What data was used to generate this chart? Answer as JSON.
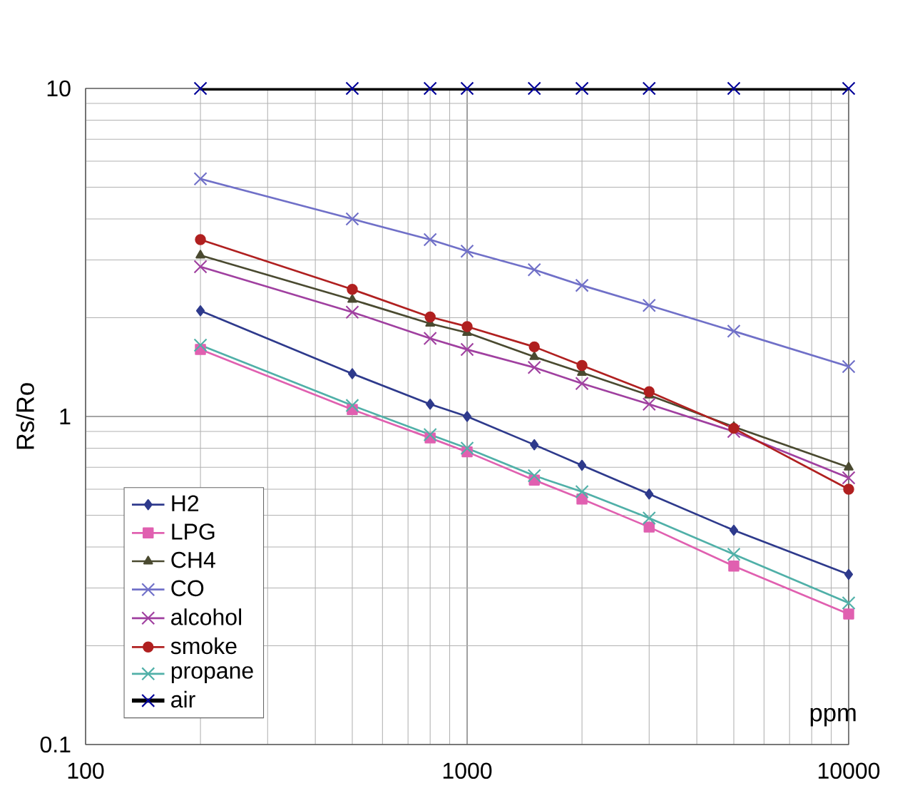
{
  "chart_data": {
    "type": "line",
    "xlabel": "ppm",
    "ylabel": "Rs/Ro",
    "log": "xy",
    "grid": true,
    "legend": "bottom left",
    "x": [
      200,
      500,
      800,
      1000,
      1500,
      2000,
      3000,
      5000,
      10000
    ],
    "xlim": [
      100,
      10000
    ],
    "xticks": [
      100,
      1000,
      10000
    ],
    "ylim": [
      0.1,
      10
    ],
    "yticks": [
      0.1,
      1,
      10
    ],
    "series": [
      {
        "name": "H2",
        "color": "#2e3a8c",
        "marker": "diamond",
        "values": [
          2.1,
          1.35,
          1.09,
          1.0,
          0.82,
          0.71,
          0.58,
          0.45,
          0.33
        ]
      },
      {
        "name": "LPG",
        "color": "#e060b0",
        "marker": "square",
        "values": [
          1.6,
          1.05,
          0.86,
          0.78,
          0.64,
          0.56,
          0.46,
          0.35,
          0.25
        ]
      },
      {
        "name": "CH4",
        "color": "#4a4a30",
        "marker": "triangle",
        "values": [
          3.1,
          2.27,
          1.92,
          1.8,
          1.52,
          1.36,
          1.16,
          0.93,
          0.7
        ]
      },
      {
        "name": "CO",
        "color": "#7070c8",
        "marker": "cross",
        "values": [
          5.3,
          4.0,
          3.46,
          3.19,
          2.8,
          2.51,
          2.18,
          1.82,
          1.42
        ]
      },
      {
        "name": "alcohol",
        "color": "#a040a0",
        "marker": "cross",
        "values": [
          2.86,
          2.08,
          1.73,
          1.6,
          1.41,
          1.26,
          1.09,
          0.9,
          0.65
        ]
      },
      {
        "name": "smoke",
        "color": "#b02020",
        "marker": "circle",
        "values": [
          3.46,
          2.44,
          2.01,
          1.88,
          1.63,
          1.43,
          1.19,
          0.92,
          0.6
        ]
      },
      {
        "name": "propane",
        "color": "#50b0a8",
        "marker": "cross",
        "values": [
          1.65,
          1.08,
          0.88,
          0.8,
          0.66,
          0.59,
          0.49,
          0.38,
          0.27
        ]
      },
      {
        "name": "air",
        "color": "#000000",
        "marker": "cross",
        "values": [
          10,
          10,
          10,
          10,
          10,
          10,
          10,
          10,
          10
        ]
      }
    ]
  }
}
